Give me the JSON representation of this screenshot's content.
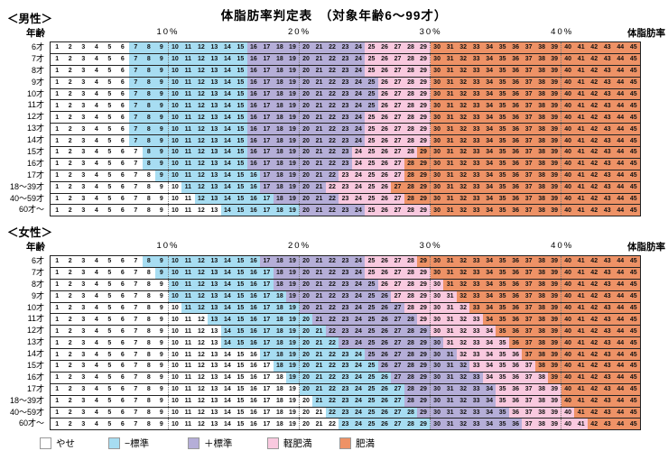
{
  "title": "体脂肪率判定表　（対象年齢6～99才）",
  "age_header": "年齢",
  "fat_header": "体脂肪率",
  "scale_labels": [
    "10%",
    "20%",
    "30%",
    "40%"
  ],
  "legend": [
    {
      "label": "やせ",
      "color": "#ffffff"
    },
    {
      "label": "−標準",
      "color": "#a7ddf2"
    },
    {
      "label": "＋標準",
      "color": "#b5aed8"
    },
    {
      "label": "軽肥満",
      "color": "#f9c9df"
    },
    {
      "label": "肥満",
      "color": "#ee9266"
    }
  ],
  "chart_data": {
    "type": "heatmap",
    "title": "体脂肪率判定表（対象年齢6～99才）",
    "x_label": "体脂肪率(%)",
    "x_range": [
      1,
      45
    ],
    "grid": true,
    "gridline_columns": [
      9,
      19,
      29,
      39
    ],
    "categories": [
      "やせ",
      "−標準",
      "＋標準",
      "軽肥満",
      "肥満"
    ],
    "tables": [
      {
        "name": "＜男性＞",
        "rows": [
          {
            "age": "6才",
            "minus_from": 7,
            "plus_from": 16,
            "light_from": 25,
            "obese_from": 30
          },
          {
            "age": "7才",
            "minus_from": 7,
            "plus_from": 16,
            "light_from": 25,
            "obese_from": 30
          },
          {
            "age": "8才",
            "minus_from": 7,
            "plus_from": 16,
            "light_from": 25,
            "obese_from": 30
          },
          {
            "age": "9才",
            "minus_from": 7,
            "plus_from": 16,
            "light_from": 26,
            "obese_from": 30
          },
          {
            "age": "10才",
            "minus_from": 7,
            "plus_from": 16,
            "light_from": 26,
            "obese_from": 30
          },
          {
            "age": "11才",
            "minus_from": 7,
            "plus_from": 16,
            "light_from": 26,
            "obese_from": 30
          },
          {
            "age": "12才",
            "minus_from": 7,
            "plus_from": 16,
            "light_from": 25,
            "obese_from": 30
          },
          {
            "age": "13才",
            "minus_from": 7,
            "plus_from": 16,
            "light_from": 25,
            "obese_from": 30
          },
          {
            "age": "14才",
            "minus_from": 7,
            "plus_from": 16,
            "light_from": 25,
            "obese_from": 30
          },
          {
            "age": "15才",
            "minus_from": 8,
            "plus_from": 16,
            "light_from": 24,
            "obese_from": 29
          },
          {
            "age": "16才",
            "minus_from": 8,
            "plus_from": 16,
            "light_from": 24,
            "obese_from": 28
          },
          {
            "age": "17才",
            "minus_from": 9,
            "plus_from": 17,
            "light_from": 23,
            "obese_from": 28
          },
          {
            "age": "18～39才",
            "minus_from": 11,
            "plus_from": 17,
            "light_from": 22,
            "obese_from": 27
          },
          {
            "age": "40～59才",
            "minus_from": 12,
            "plus_from": 18,
            "light_from": 23,
            "obese_from": 28
          },
          {
            "age": "60才～",
            "minus_from": 14,
            "plus_from": 20,
            "light_from": 25,
            "obese_from": 30
          }
        ]
      },
      {
        "name": "＜女性＞",
        "rows": [
          {
            "age": "6才",
            "minus_from": 8,
            "plus_from": 17,
            "light_from": 25,
            "obese_from": 29
          },
          {
            "age": "7才",
            "minus_from": 9,
            "plus_from": 18,
            "light_from": 25,
            "obese_from": 30
          },
          {
            "age": "8才",
            "minus_from": 10,
            "plus_from": 18,
            "light_from": 26,
            "obese_from": 31
          },
          {
            "age": "9才",
            "minus_from": 10,
            "plus_from": 19,
            "light_from": 27,
            "obese_from": 32
          },
          {
            "age": "10才",
            "minus_from": 11,
            "plus_from": 20,
            "light_from": 28,
            "obese_from": 33
          },
          {
            "age": "11才",
            "minus_from": 13,
            "plus_from": 21,
            "light_from": 29,
            "obese_from": 34
          },
          {
            "age": "12才",
            "minus_from": 14,
            "plus_from": 22,
            "light_from": 30,
            "obese_from": 35
          },
          {
            "age": "13才",
            "minus_from": 14,
            "plus_from": 23,
            "light_from": 31,
            "obese_from": 36
          },
          {
            "age": "14才",
            "minus_from": 17,
            "plus_from": 25,
            "light_from": 32,
            "obese_from": 37
          },
          {
            "age": "15才",
            "minus_from": 18,
            "plus_from": 26,
            "light_from": 33,
            "obese_from": 38
          },
          {
            "age": "16才",
            "minus_from": 19,
            "plus_from": 27,
            "light_from": 34,
            "obese_from": 39
          },
          {
            "age": "17才",
            "minus_from": 20,
            "plus_from": 28,
            "light_from": 35,
            "obese_from": 40
          },
          {
            "age": "18～39才",
            "minus_from": 21,
            "plus_from": 28,
            "light_from": 35,
            "obese_from": 40
          },
          {
            "age": "40～59才",
            "minus_from": 22,
            "plus_from": 29,
            "light_from": 36,
            "obese_from": 41
          },
          {
            "age": "60才～",
            "minus_from": 23,
            "plus_from": 30,
            "light_from": 37,
            "obese_from": 42
          }
        ]
      }
    ]
  }
}
